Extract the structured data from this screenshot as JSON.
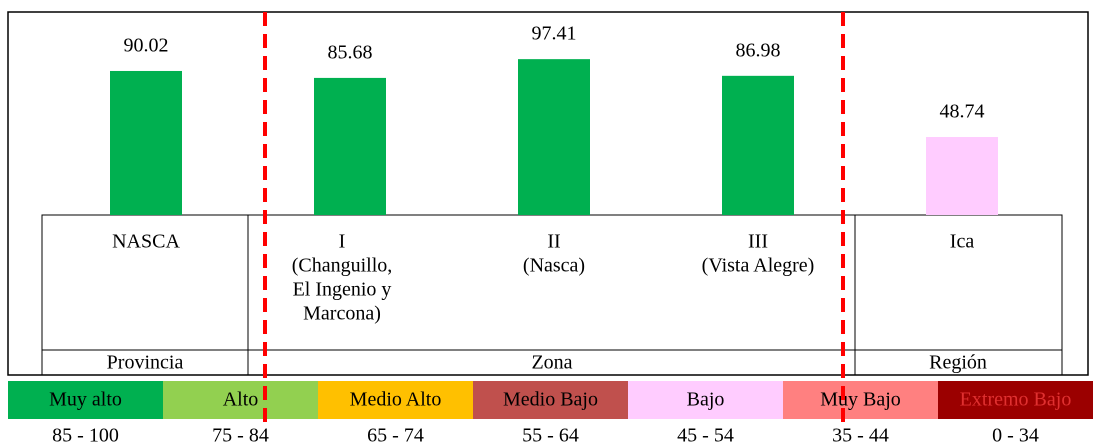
{
  "chart_data": {
    "type": "bar",
    "categories": [
      [
        "NASCA"
      ],
      [
        "I",
        "(Changuillo,",
        "El Ingenio y",
        "Marcona)"
      ],
      [
        "II",
        "(Nasca)"
      ],
      [
        "III",
        "(Vista Alegre)"
      ],
      [
        "Ica"
      ]
    ],
    "values": [
      90.02,
      85.68,
      97.41,
      86.98,
      48.74
    ],
    "colors": [
      "#00b050",
      "#00b050",
      "#00b050",
      "#00b050",
      "#ffccff"
    ],
    "groups": [
      "Provincia",
      "Zona",
      "Región"
    ],
    "scale": [
      {
        "name": "Muy alto",
        "color": "#00b050",
        "range": "85 - 100"
      },
      {
        "name": "Alto",
        "color": "#92d050",
        "range": "75 - 84"
      },
      {
        "name": "Medio Alto",
        "color": "#ffc000",
        "range": "65 - 74"
      },
      {
        "name": "Medio Bajo",
        "color": "#c0504d",
        "range": "55 - 64"
      },
      {
        "name": "Bajo",
        "color": "#ffccff",
        "range": "45 - 54"
      },
      {
        "name": "Muy Bajo",
        "color": "#ff8080",
        "range": "35 - 44"
      },
      {
        "name": "Extremo Bajo",
        "color": "#9b0000",
        "range": "0 - 34"
      }
    ]
  }
}
